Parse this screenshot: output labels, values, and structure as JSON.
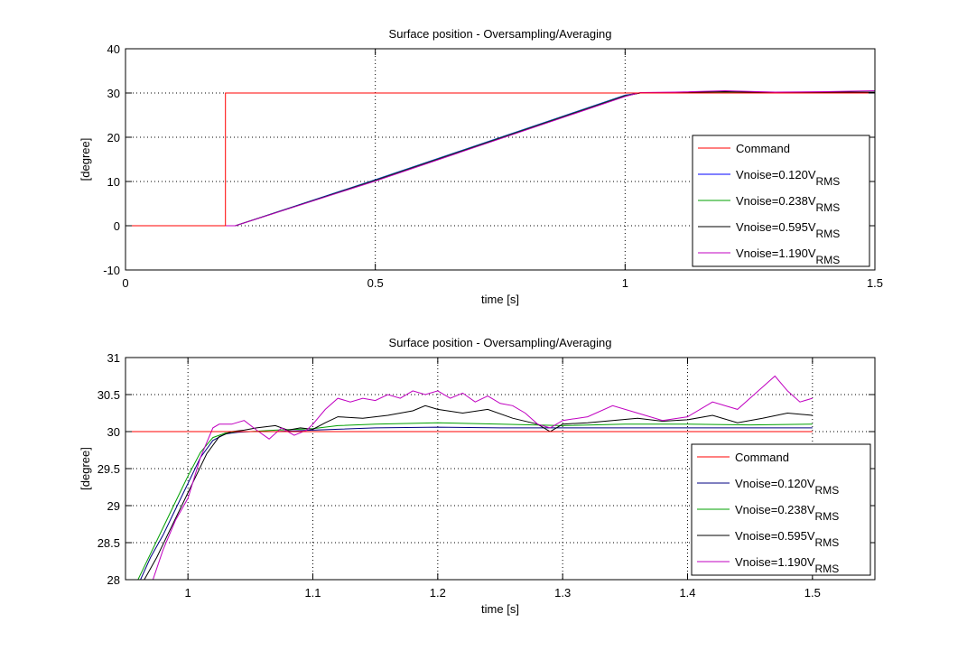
{
  "chart_data": [
    {
      "type": "line",
      "title": "Surface position - Oversampling/Averaging",
      "xlabel": "time [s]",
      "ylabel": "[degree]",
      "xlim": [
        0,
        1.5
      ],
      "ylim": [
        -10,
        40
      ],
      "xticks": [
        0,
        0.5,
        1,
        1.5
      ],
      "xtick_labels": [
        "0",
        "0.5",
        "1",
        "1.5"
      ],
      "yticks": [
        -10,
        0,
        10,
        20,
        30,
        40
      ],
      "ytick_labels": [
        "-10",
        "0",
        "10",
        "20",
        "30",
        "40"
      ],
      "grid": true,
      "legend_position": "lower-right",
      "series": [
        {
          "name": "Command",
          "sub": "",
          "color": "#ff0000",
          "x": [
            0,
            0.2,
            0.2,
            1.5
          ],
          "y": [
            0,
            0,
            30,
            30
          ]
        },
        {
          "name": "Vnoise=0.120V",
          "sub": "RMS",
          "color": "#0000ff",
          "x": [
            0,
            0.22,
            0.5,
            1.0,
            1.03,
            1.1,
            1.2,
            1.3,
            1.4,
            1.5
          ],
          "y": [
            0,
            0,
            10.4,
            29.5,
            30,
            30.1,
            30.2,
            30.1,
            30.1,
            30.1
          ]
        },
        {
          "name": "Vnoise=0.238V",
          "sub": "RMS",
          "color": "#00a000",
          "x": [
            0,
            0.22,
            0.5,
            1.0,
            1.03,
            1.1,
            1.2,
            1.3,
            1.4,
            1.5
          ],
          "y": [
            0,
            0,
            10.3,
            29.4,
            30,
            30.1,
            30.1,
            30.1,
            30.1,
            30.1
          ]
        },
        {
          "name": "Vnoise=0.595V",
          "sub": "RMS",
          "color": "#000000",
          "x": [
            0,
            0.22,
            0.5,
            1.0,
            1.03,
            1.1,
            1.2,
            1.3,
            1.4,
            1.5
          ],
          "y": [
            0,
            0,
            10.2,
            29.3,
            30,
            30.1,
            30.3,
            30.1,
            30.2,
            30.2
          ]
        },
        {
          "name": "Vnoise=1.190V",
          "sub": "RMS",
          "color": "#c000c0",
          "x": [
            0,
            0.22,
            0.5,
            1.0,
            1.03,
            1.1,
            1.2,
            1.3,
            1.4,
            1.5
          ],
          "y": [
            0,
            0,
            10.1,
            29.2,
            30.1,
            30.2,
            30.5,
            30.2,
            30.3,
            30.5
          ]
        }
      ]
    },
    {
      "type": "line",
      "title": "Surface position - Oversampling/Averaging",
      "xlabel": "time [s]",
      "ylabel": "[degree]",
      "xlim": [
        0.95,
        1.55
      ],
      "ylim": [
        28,
        31
      ],
      "xticks": [
        1,
        1.1,
        1.2,
        1.3,
        1.4,
        1.5
      ],
      "xtick_labels": [
        "1",
        "1.1",
        "1.2",
        "1.3",
        "1.4",
        "1.5"
      ],
      "yticks": [
        28,
        28.5,
        29,
        29.5,
        30,
        30.5,
        31
      ],
      "ytick_labels": [
        "28",
        "28.5",
        "29",
        "29.5",
        "30",
        "30.5",
        "31"
      ],
      "grid": true,
      "legend_position": "lower-right",
      "series": [
        {
          "name": "Command",
          "sub": "",
          "color": "#ff0000",
          "x": [
            0.95,
            1.5
          ],
          "y": [
            30,
            30
          ]
        },
        {
          "name": "Vnoise=0.120V",
          "sub": "RMS",
          "color": "#000080",
          "x": [
            0.962,
            0.97,
            0.98,
            0.99,
            1.0,
            1.01,
            1.02,
            1.03,
            1.04,
            1.05,
            1.07,
            1.1,
            1.15,
            1.2,
            1.25,
            1.3,
            1.35,
            1.4,
            1.45,
            1.5
          ],
          "y": [
            28,
            28.3,
            28.6,
            28.95,
            29.3,
            29.65,
            29.88,
            29.97,
            29.99,
            30.0,
            30.0,
            30.02,
            30.05,
            30.06,
            30.05,
            30.05,
            30.05,
            30.05,
            30.05,
            30.05
          ]
        },
        {
          "name": "Vnoise=0.238V",
          "sub": "RMS",
          "color": "#00a000",
          "x": [
            0.96,
            0.97,
            0.98,
            0.99,
            1.0,
            1.01,
            1.02,
            1.03,
            1.04,
            1.05,
            1.07,
            1.1,
            1.12,
            1.15,
            1.2,
            1.25,
            1.3,
            1.35,
            1.4,
            1.45,
            1.5
          ],
          "y": [
            28,
            28.35,
            28.7,
            29.05,
            29.4,
            29.72,
            29.92,
            29.98,
            30.0,
            30.0,
            30.02,
            30.04,
            30.08,
            30.1,
            30.12,
            30.1,
            30.08,
            30.1,
            30.1,
            30.09,
            30.1
          ]
        },
        {
          "name": "Vnoise=0.595V",
          "sub": "RMS",
          "color": "#000000",
          "x": [
            0.965,
            0.975,
            0.985,
            0.995,
            1.005,
            1.015,
            1.025,
            1.035,
            1.045,
            1.055,
            1.07,
            1.08,
            1.09,
            1.1,
            1.11,
            1.12,
            1.14,
            1.16,
            1.18,
            1.19,
            1.2,
            1.22,
            1.24,
            1.26,
            1.28,
            1.29,
            1.3,
            1.32,
            1.34,
            1.36,
            1.38,
            1.4,
            1.42,
            1.44,
            1.46,
            1.48,
            1.5
          ],
          "y": [
            28,
            28.3,
            28.65,
            29.0,
            29.35,
            29.7,
            29.93,
            30.0,
            30.02,
            30.05,
            30.08,
            30.02,
            30.05,
            30.03,
            30.12,
            30.2,
            30.18,
            30.22,
            30.28,
            30.35,
            30.3,
            30.25,
            30.3,
            30.18,
            30.1,
            30.0,
            30.1,
            30.12,
            30.15,
            30.18,
            30.14,
            30.16,
            30.22,
            30.12,
            30.18,
            30.25,
            30.22
          ]
        },
        {
          "name": "Vnoise=1.190V",
          "sub": "RMS",
          "color": "#c000c0",
          "x": [
            0.972,
            0.98,
            0.99,
            1.0,
            1.01,
            1.02,
            1.025,
            1.035,
            1.045,
            1.055,
            1.065,
            1.075,
            1.085,
            1.095,
            1.1,
            1.11,
            1.12,
            1.13,
            1.14,
            1.15,
            1.16,
            1.17,
            1.18,
            1.19,
            1.2,
            1.21,
            1.22,
            1.23,
            1.24,
            1.25,
            1.26,
            1.27,
            1.28,
            1.29,
            1.3,
            1.32,
            1.34,
            1.36,
            1.38,
            1.4,
            1.42,
            1.44,
            1.46,
            1.47,
            1.48,
            1.49,
            1.5
          ],
          "y": [
            28,
            28.4,
            28.8,
            29.1,
            29.65,
            30.05,
            30.1,
            30.1,
            30.15,
            30.02,
            29.9,
            30.05,
            29.95,
            30.02,
            30.1,
            30.3,
            30.45,
            30.4,
            30.45,
            30.42,
            30.5,
            30.45,
            30.55,
            30.5,
            30.55,
            30.45,
            30.52,
            30.4,
            30.48,
            30.38,
            30.35,
            30.25,
            30.1,
            30.05,
            30.15,
            30.2,
            30.35,
            30.25,
            30.15,
            30.2,
            30.4,
            30.3,
            30.6,
            30.75,
            30.55,
            30.4,
            30.45
          ]
        }
      ]
    }
  ]
}
